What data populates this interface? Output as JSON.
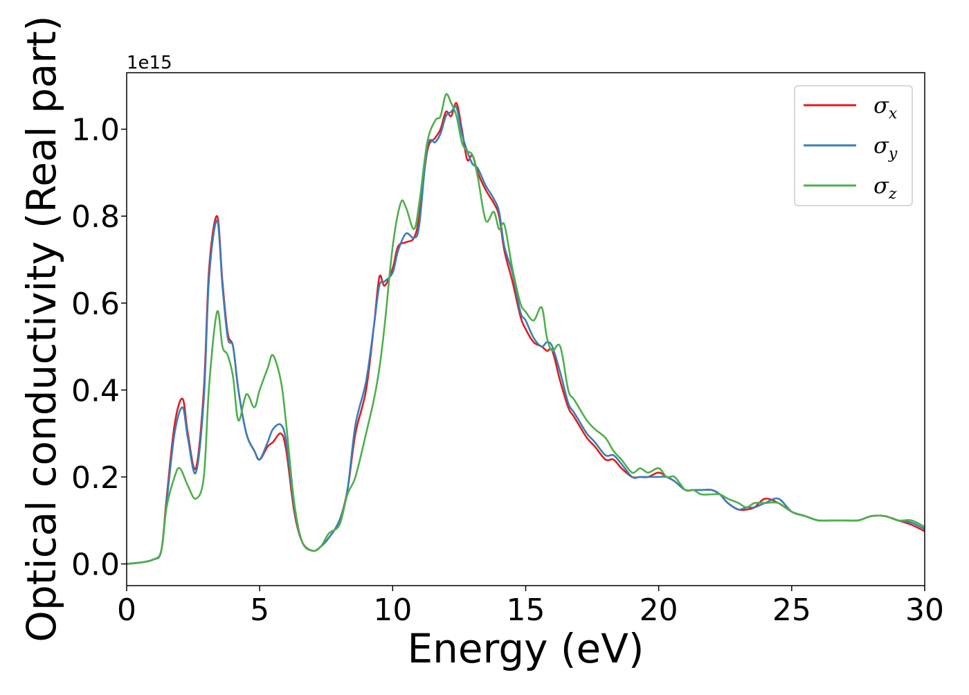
{
  "chart_data": {
    "type": "line",
    "xlabel": "Energy (eV)",
    "ylabel": "Optical conductivity (Real part)",
    "y_offset_text": "1e15",
    "xlim": [
      0,
      30
    ],
    "ylim": [
      -0.05,
      1.13
    ],
    "x_ticks": [
      0,
      5,
      10,
      15,
      20,
      25,
      30
    ],
    "x_tick_labels": [
      "0",
      "5",
      "10",
      "15",
      "20",
      "25",
      "30"
    ],
    "y_ticks": [
      0.0,
      0.2,
      0.4,
      0.6,
      0.8,
      1.0
    ],
    "y_tick_labels": [
      "0.0",
      "0.2",
      "0.4",
      "0.6",
      "0.8",
      "1.0"
    ],
    "grid": false,
    "legend_position": "top-right",
    "series": [
      {
        "name": "σx",
        "symbol": "σ",
        "subscript": "x",
        "color": "#e41a1c",
        "x": [
          0,
          0.5,
          1.0,
          1.3,
          1.5,
          1.8,
          2.1,
          2.3,
          2.6,
          2.9,
          3.1,
          3.4,
          3.6,
          3.8,
          4.0,
          4.2,
          4.5,
          4.8,
          5.0,
          5.3,
          5.5,
          5.8,
          6.0,
          6.3,
          6.6,
          7.0,
          7.3,
          7.6,
          8.0,
          8.3,
          8.6,
          9.0,
          9.3,
          9.5,
          9.7,
          10.0,
          10.2,
          10.5,
          10.8,
          11.0,
          11.3,
          11.6,
          11.8,
          12.0,
          12.2,
          12.4,
          12.6,
          12.8,
          13.0,
          13.2,
          13.5,
          13.8,
          14.0,
          14.2,
          14.5,
          14.8,
          15.0,
          15.3,
          15.6,
          15.8,
          16.0,
          16.3,
          16.6,
          16.8,
          17.0,
          17.3,
          17.6,
          18.0,
          18.3,
          18.6,
          19.0,
          19.3,
          19.6,
          20.0,
          20.3,
          20.6,
          21.0,
          21.3,
          21.6,
          22.0,
          22.3,
          22.6,
          23.0,
          23.3,
          23.6,
          24.0,
          24.5,
          25.0,
          25.5,
          26.0,
          26.5,
          27.0,
          27.5,
          28.0,
          28.5,
          29.0,
          29.5,
          30.0
        ],
        "y": [
          0,
          0.003,
          0.01,
          0.03,
          0.15,
          0.32,
          0.38,
          0.3,
          0.22,
          0.4,
          0.68,
          0.8,
          0.65,
          0.53,
          0.5,
          0.4,
          0.3,
          0.26,
          0.24,
          0.27,
          0.28,
          0.3,
          0.26,
          0.12,
          0.05,
          0.03,
          0.04,
          0.06,
          0.1,
          0.17,
          0.3,
          0.4,
          0.55,
          0.66,
          0.64,
          0.68,
          0.73,
          0.74,
          0.75,
          0.8,
          0.95,
          0.98,
          1.0,
          1.04,
          1.03,
          1.06,
          1.0,
          0.93,
          0.94,
          0.9,
          0.86,
          0.83,
          0.8,
          0.72,
          0.65,
          0.57,
          0.54,
          0.51,
          0.5,
          0.49,
          0.49,
          0.42,
          0.36,
          0.34,
          0.32,
          0.29,
          0.27,
          0.24,
          0.24,
          0.22,
          0.2,
          0.2,
          0.2,
          0.21,
          0.2,
          0.19,
          0.17,
          0.17,
          0.17,
          0.17,
          0.16,
          0.14,
          0.125,
          0.125,
          0.13,
          0.15,
          0.14,
          0.12,
          0.11,
          0.1,
          0.1,
          0.1,
          0.1,
          0.11,
          0.11,
          0.1,
          0.09,
          0.075
        ]
      },
      {
        "name": "σy",
        "symbol": "σ",
        "subscript": "y",
        "color": "#377eb8",
        "x": [
          0,
          0.5,
          1.0,
          1.3,
          1.5,
          1.8,
          2.1,
          2.3,
          2.6,
          2.9,
          3.1,
          3.4,
          3.6,
          3.8,
          4.0,
          4.2,
          4.5,
          4.8,
          5.0,
          5.3,
          5.5,
          5.8,
          6.0,
          6.3,
          6.6,
          7.0,
          7.3,
          7.6,
          8.0,
          8.3,
          8.6,
          9.0,
          9.3,
          9.5,
          9.7,
          10.0,
          10.2,
          10.5,
          10.8,
          11.0,
          11.3,
          11.6,
          11.8,
          12.0,
          12.2,
          12.4,
          12.6,
          12.8,
          13.0,
          13.2,
          13.5,
          13.8,
          14.0,
          14.2,
          14.5,
          14.8,
          15.0,
          15.3,
          15.6,
          15.8,
          16.0,
          16.3,
          16.6,
          16.8,
          17.0,
          17.3,
          17.6,
          18.0,
          18.3,
          18.6,
          19.0,
          19.3,
          19.6,
          20.0,
          20.3,
          20.6,
          21.0,
          21.3,
          21.6,
          22.0,
          22.3,
          22.6,
          23.0,
          23.3,
          23.6,
          24.0,
          24.5,
          25.0,
          25.5,
          26.0,
          26.5,
          27.0,
          27.5,
          28.0,
          28.5,
          29.0,
          29.5,
          30.0
        ],
        "y": [
          0,
          0.003,
          0.01,
          0.03,
          0.14,
          0.3,
          0.36,
          0.29,
          0.21,
          0.38,
          0.66,
          0.79,
          0.64,
          0.52,
          0.5,
          0.4,
          0.3,
          0.26,
          0.24,
          0.28,
          0.31,
          0.32,
          0.28,
          0.13,
          0.05,
          0.03,
          0.04,
          0.06,
          0.1,
          0.17,
          0.32,
          0.42,
          0.55,
          0.64,
          0.65,
          0.67,
          0.72,
          0.76,
          0.75,
          0.78,
          0.96,
          0.97,
          0.99,
          1.03,
          1.04,
          1.05,
          0.99,
          0.95,
          0.92,
          0.91,
          0.87,
          0.84,
          0.81,
          0.73,
          0.67,
          0.58,
          0.56,
          0.52,
          0.5,
          0.51,
          0.5,
          0.44,
          0.37,
          0.35,
          0.33,
          0.3,
          0.28,
          0.25,
          0.25,
          0.23,
          0.2,
          0.2,
          0.2,
          0.2,
          0.2,
          0.19,
          0.17,
          0.17,
          0.17,
          0.17,
          0.16,
          0.14,
          0.125,
          0.13,
          0.13,
          0.14,
          0.15,
          0.12,
          0.11,
          0.1,
          0.1,
          0.1,
          0.1,
          0.11,
          0.11,
          0.1,
          0.095,
          0.08
        ]
      },
      {
        "name": "σz",
        "symbol": "σ",
        "subscript": "z",
        "color": "#4daf4a",
        "x": [
          0,
          0.5,
          1.0,
          1.3,
          1.5,
          1.8,
          2.0,
          2.3,
          2.6,
          2.9,
          3.1,
          3.4,
          3.6,
          3.8,
          4.0,
          4.2,
          4.5,
          4.8,
          5.0,
          5.3,
          5.5,
          5.8,
          6.0,
          6.3,
          6.6,
          7.0,
          7.3,
          7.6,
          8.0,
          8.3,
          8.6,
          9.0,
          9.3,
          9.5,
          9.7,
          10.0,
          10.3,
          10.5,
          10.8,
          11.0,
          11.3,
          11.6,
          11.8,
          12.0,
          12.2,
          12.4,
          12.6,
          12.8,
          13.0,
          13.2,
          13.5,
          13.8,
          14.0,
          14.2,
          14.5,
          14.8,
          15.0,
          15.3,
          15.6,
          15.8,
          16.0,
          16.3,
          16.6,
          16.8,
          17.0,
          17.3,
          17.6,
          18.0,
          18.3,
          18.6,
          19.0,
          19.3,
          19.6,
          20.0,
          20.3,
          20.6,
          21.0,
          21.3,
          21.6,
          22.0,
          22.3,
          22.6,
          23.0,
          23.3,
          23.6,
          24.0,
          24.5,
          25.0,
          25.5,
          26.0,
          26.5,
          27.0,
          27.5,
          28.0,
          28.5,
          29.0,
          29.5,
          30.0
        ],
        "y": [
          0,
          0.003,
          0.01,
          0.03,
          0.13,
          0.2,
          0.22,
          0.18,
          0.15,
          0.2,
          0.41,
          0.58,
          0.5,
          0.48,
          0.43,
          0.33,
          0.39,
          0.36,
          0.4,
          0.45,
          0.48,
          0.42,
          0.32,
          0.14,
          0.05,
          0.03,
          0.04,
          0.07,
          0.09,
          0.16,
          0.2,
          0.3,
          0.38,
          0.45,
          0.55,
          0.73,
          0.83,
          0.82,
          0.77,
          0.83,
          0.97,
          1.02,
          1.03,
          1.08,
          1.06,
          1.03,
          0.97,
          0.95,
          0.94,
          0.89,
          0.79,
          0.81,
          0.77,
          0.78,
          0.68,
          0.6,
          0.58,
          0.56,
          0.59,
          0.52,
          0.49,
          0.5,
          0.4,
          0.38,
          0.36,
          0.33,
          0.31,
          0.29,
          0.26,
          0.24,
          0.21,
          0.22,
          0.21,
          0.22,
          0.2,
          0.2,
          0.17,
          0.17,
          0.16,
          0.16,
          0.16,
          0.15,
          0.14,
          0.13,
          0.14,
          0.14,
          0.14,
          0.12,
          0.11,
          0.1,
          0.1,
          0.1,
          0.1,
          0.11,
          0.11,
          0.1,
          0.1,
          0.085
        ]
      }
    ]
  }
}
